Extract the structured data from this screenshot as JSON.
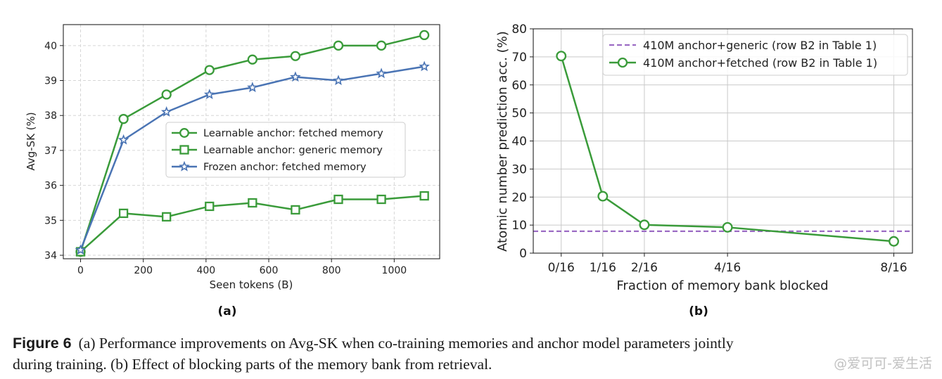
{
  "figure": {
    "caption_label": "Figure 6",
    "caption_line1": "(a) Performance improvements on Avg-SK when co-training memories and anchor model parameters jointly",
    "caption_line2": "during training. (b) Effect of blocking parts of the memory bank from retrieval.",
    "watermark": "@爱可可-爱生活"
  },
  "colors": {
    "green": "#3a9b3a",
    "blue": "#4a74b4",
    "purple": "#9c6cc4",
    "grid": "#d9d9d9"
  },
  "chart_data": [
    {
      "type": "line",
      "panel_label": "(a)",
      "xlabel": "Seen tokens (B)",
      "ylabel": "Avg-SK (%)",
      "xlim": [
        -55,
        1145
      ],
      "ylim": [
        33.9,
        40.6
      ],
      "xticks": [
        0,
        200,
        400,
        600,
        800,
        1000
      ],
      "yticks": [
        34,
        35,
        36,
        37,
        38,
        39,
        40
      ],
      "grid": true,
      "legend_position": "center-right",
      "x": [
        0,
        137,
        274,
        411,
        548,
        685,
        822,
        959,
        1096
      ],
      "series": [
        {
          "name": "Learnable anchor: fetched memory",
          "marker": "circle",
          "color": "#3a9b3a",
          "values": [
            34.1,
            37.9,
            38.6,
            39.3,
            39.6,
            39.7,
            40.0,
            40.0,
            40.3
          ]
        },
        {
          "name": "Learnable anchor: generic memory",
          "marker": "square",
          "color": "#3a9b3a",
          "values": [
            34.1,
            35.2,
            35.1,
            35.4,
            35.5,
            35.3,
            35.6,
            35.6,
            35.7
          ]
        },
        {
          "name": "Frozen anchor: fetched memory",
          "marker": "star",
          "color": "#4a74b4",
          "values": [
            34.15,
            37.3,
            38.1,
            38.6,
            38.8,
            39.1,
            39.0,
            39.2,
            39.4
          ]
        }
      ]
    },
    {
      "type": "line",
      "panel_label": "(b)",
      "xlabel": "Fraction of memory bank blocked",
      "ylabel": "Atomic number prediction acc. (%)",
      "xlim": [
        -0.042,
        0.528
      ],
      "ylim": [
        0,
        80
      ],
      "xticks": [
        0,
        0.0625,
        0.125,
        0.25,
        0.5
      ],
      "xticklabels": [
        "0/16",
        "1/16",
        "2/16",
        "4/16",
        "8/16"
      ],
      "yticks": [
        0,
        10,
        20,
        30,
        40,
        50,
        60,
        70,
        80
      ],
      "grid": true,
      "legend_position": "top-right",
      "x": [
        0,
        0.0625,
        0.125,
        0.25,
        0.5
      ],
      "series": [
        {
          "name": "410M anchor+fetched (row B2 in Table 1)",
          "marker": "circle",
          "color": "#3a9b3a",
          "values": [
            70.3,
            20.3,
            10.1,
            9.2,
            4.2
          ]
        }
      ],
      "reference_lines": [
        {
          "name": "410M anchor+generic (row B2 in Table 1)",
          "style": "dashed",
          "color": "#9c6cc4",
          "value": 7.8
        }
      ]
    }
  ]
}
